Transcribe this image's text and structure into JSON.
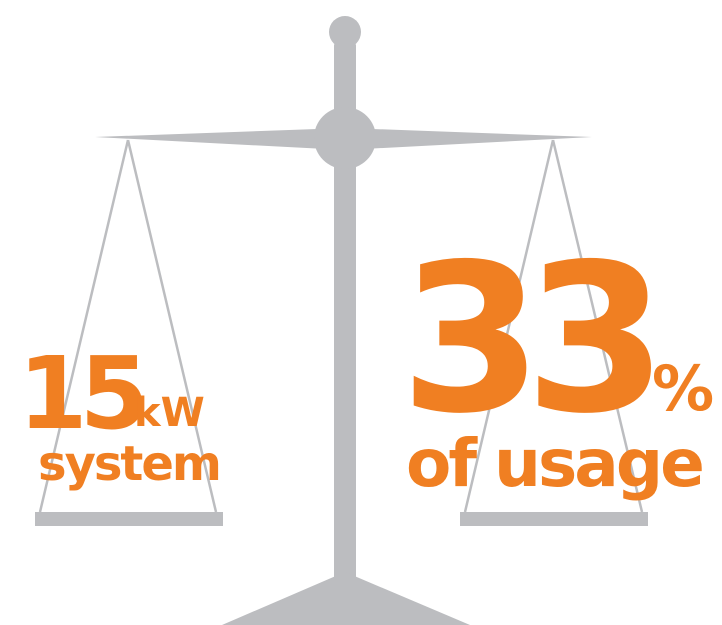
{
  "left": {
    "number": "15",
    "unit": "kW",
    "label": "system"
  },
  "right": {
    "number": "33",
    "unit": "%",
    "label": "of usage"
  }
}
